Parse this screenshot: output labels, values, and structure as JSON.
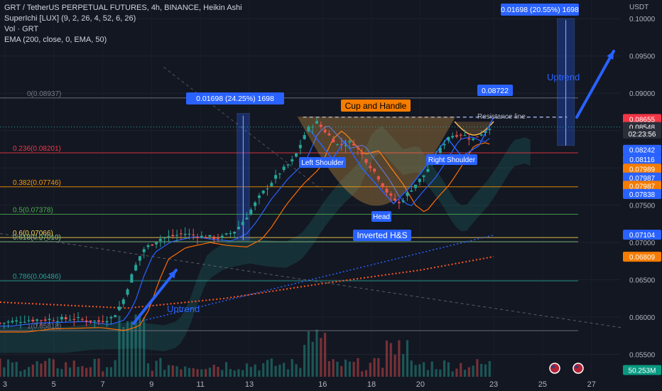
{
  "header": {
    "title": "GRT / TetherUS PERPETUAL FUTURES, 4h, BINANCE, Heikin Ashi",
    "indicators": [
      "SuperIchi [LUX] (9, 2, 26, 4, 52, 6, 26)",
      "Vol · GRT",
      "EMA (200, close, 0, EMA, 50)"
    ]
  },
  "price_axis": {
    "unit": "USDT",
    "ticks": [
      "0.10000",
      "0.09500",
      "0.09000",
      "0.08500",
      "0.08000",
      "0.07500",
      "0.07000",
      "0.06500",
      "0.06000",
      "0.05500"
    ],
    "badges": [
      {
        "text": "0.08655",
        "price": 0.08655,
        "color": "#f23645"
      },
      {
        "text": "0.08548",
        "price": 0.08548,
        "color": "#2a2e39"
      },
      {
        "text": "02:23:56",
        "price": 0.0846,
        "color": "#2a2e39"
      },
      {
        "text": "0.08242",
        "price": 0.08242,
        "color": "#2962ff"
      },
      {
        "text": "0.08116",
        "price": 0.08116,
        "color": "#2962ff"
      },
      {
        "text": "0.07989",
        "price": 0.07989,
        "color": "#f57c00"
      },
      {
        "text": "0.07987",
        "price": 0.0787,
        "color": "#2962ff"
      },
      {
        "text": "0.07987",
        "price": 0.0776,
        "color": "#f57c00"
      },
      {
        "text": "0.07838",
        "price": 0.0765,
        "color": "#2962ff"
      },
      {
        "text": "0.07104",
        "price": 0.07104,
        "color": "#2962ff"
      },
      {
        "text": "0.06809",
        "price": 0.06809,
        "color": "#f57c00"
      },
      {
        "text": "50.253M",
        "price": 0.0529,
        "color": "#089981"
      }
    ]
  },
  "time_axis": {
    "ticks": [
      {
        "label": "3",
        "day": 3
      },
      {
        "label": "5",
        "day": 5
      },
      {
        "label": "7",
        "day": 7
      },
      {
        "label": "9",
        "day": 9
      },
      {
        "label": "11",
        "day": 11
      },
      {
        "label": "13",
        "day": 13
      },
      {
        "label": "16",
        "day": 16
      },
      {
        "label": "18",
        "day": 18
      },
      {
        "label": "20",
        "day": 20
      },
      {
        "label": "23",
        "day": 23
      },
      {
        "label": "25",
        "day": 25
      },
      {
        "label": "27",
        "day": 27
      }
    ]
  },
  "fib_levels": [
    {
      "label": "0(0.08937)",
      "price": 0.08937,
      "color": "#787b86"
    },
    {
      "label": "0.236(0.08201)",
      "price": 0.08201,
      "color": "#f23645"
    },
    {
      "label": "0.382(0.07746)",
      "price": 0.07746,
      "color": "#ff9800"
    },
    {
      "label": "0.5(0.07378)",
      "price": 0.07378,
      "color": "#4caf50"
    },
    {
      "label": "0.6(0.07066)",
      "price": 0.07066,
      "color": "#ffd54f"
    },
    {
      "label": "0.618(0.07010)",
      "price": 0.0701,
      "color": "#81c784"
    },
    {
      "label": "0.786(0.06486)",
      "price": 0.06486,
      "color": "#26a69a"
    },
    {
      "label": "1(0.05818)",
      "price": 0.05818,
      "color": "#787b86"
    }
  ],
  "annotations": {
    "measure_left": "0.01698 (24.25%) 1698",
    "measure_right": "0.01698 (20.55%) 1698",
    "target": "0.08722",
    "resistance": "Resistance line",
    "cup_handle": "Cup and Handle",
    "left_shoulder": "Left Shoulder",
    "head": "Head",
    "right_shoulder": "Right Shoulder",
    "inverted_hs": "Inverted H&S",
    "uptrend_top": "Uptrend",
    "uptrend_bottom": "Uptrend"
  },
  "chart_data": {
    "type": "candlestick",
    "title": "GRT / TetherUS PERPETUAL FUTURES, 4h, BINANCE, Heikin Ashi",
    "ylabel": "USDT",
    "ylim": [
      0.052,
      0.1025
    ],
    "xlim": [
      2.8,
      28.2
    ],
    "x_unit": "day of month",
    "keypoints": [
      {
        "day": 3.0,
        "price": 0.0592
      },
      {
        "day": 4.0,
        "price": 0.0596
      },
      {
        "day": 5.0,
        "price": 0.0597
      },
      {
        "day": 6.0,
        "price": 0.0598
      },
      {
        "day": 7.0,
        "price": 0.0594
      },
      {
        "day": 7.6,
        "price": 0.06
      },
      {
        "day": 8.0,
        "price": 0.0622
      },
      {
        "day": 8.4,
        "price": 0.066
      },
      {
        "day": 8.8,
        "price": 0.069
      },
      {
        "day": 9.5,
        "price": 0.0705
      },
      {
        "day": 10.5,
        "price": 0.0712
      },
      {
        "day": 11.2,
        "price": 0.0708
      },
      {
        "day": 12.0,
        "price": 0.0706
      },
      {
        "day": 12.6,
        "price": 0.0716
      },
      {
        "day": 13.0,
        "price": 0.0732
      },
      {
        "day": 13.6,
        "price": 0.0762
      },
      {
        "day": 14.3,
        "price": 0.079
      },
      {
        "day": 15.0,
        "price": 0.0812
      },
      {
        "day": 15.5,
        "price": 0.085
      },
      {
        "day": 15.9,
        "price": 0.0862
      },
      {
        "day": 16.3,
        "price": 0.0848
      },
      {
        "day": 16.8,
        "price": 0.083
      },
      {
        "day": 17.4,
        "price": 0.0835
      },
      {
        "day": 17.9,
        "price": 0.0812
      },
      {
        "day": 18.4,
        "price": 0.079
      },
      {
        "day": 18.9,
        "price": 0.0762
      },
      {
        "day": 19.3,
        "price": 0.0752
      },
      {
        "day": 19.8,
        "price": 0.0772
      },
      {
        "day": 20.3,
        "price": 0.079
      },
      {
        "day": 20.8,
        "price": 0.0815
      },
      {
        "day": 21.3,
        "price": 0.0842
      },
      {
        "day": 21.8,
        "price": 0.0846
      },
      {
        "day": 22.3,
        "price": 0.0838
      },
      {
        "day": 22.9,
        "price": 0.0852
      },
      {
        "day": 23.0,
        "price": 0.0855
      }
    ],
    "volume_scale_max": 50253000,
    "ema_200": [
      {
        "day": 2.8,
        "price": 0.062
      },
      {
        "day": 8.0,
        "price": 0.0612
      },
      {
        "day": 12.0,
        "price": 0.0625
      },
      {
        "day": 16.0,
        "price": 0.0645
      },
      {
        "day": 20.0,
        "price": 0.0663
      },
      {
        "day": 23.0,
        "price": 0.0681
      }
    ],
    "current_price": 0.08548
  }
}
